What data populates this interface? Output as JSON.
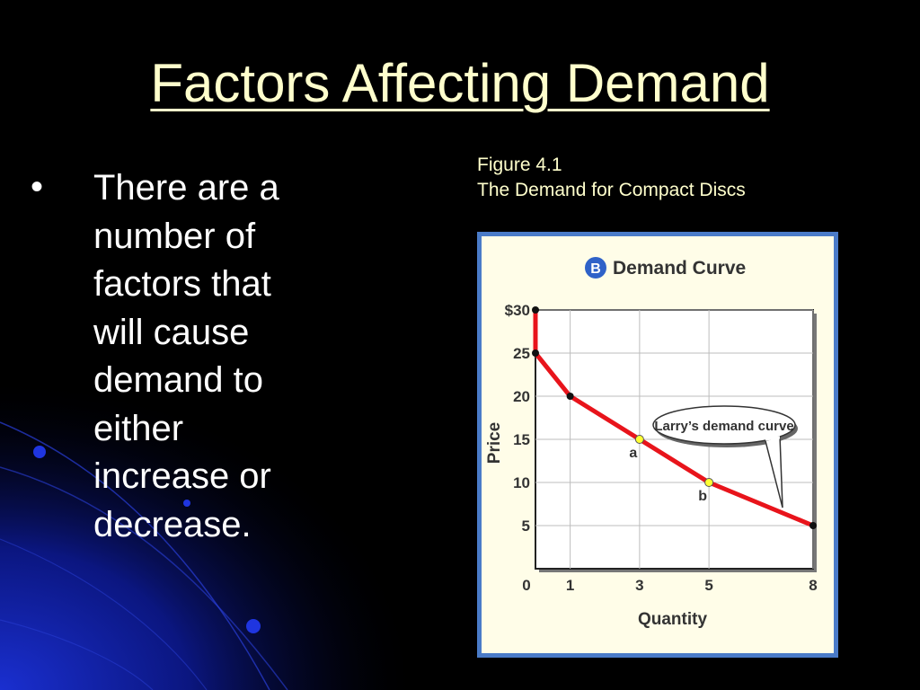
{
  "slide": {
    "title": "Factors Affecting Demand",
    "bullet_marker": "•",
    "bullet_text": "There are a number of factors that will cause demand to either increase or decrease."
  },
  "figure": {
    "caption_line1": "Figure 4.1",
    "caption_line2": "The Demand for Compact Discs",
    "badge_letter": "B",
    "chart_title": "Demand Curve",
    "callout_text": "Larry’s demand curve"
  },
  "colors": {
    "background": "#000000",
    "title_text": "#ffffcc",
    "frame_blue": "#4a7bc8",
    "chart_bg": "#fffde8",
    "curve_red": "#e8141b",
    "badge_blue": "#2f62c8",
    "highlight_point": "#ffff33"
  },
  "chart_data": {
    "type": "line",
    "title": "Demand Curve",
    "xlabel": "Quantity",
    "ylabel": "Price",
    "xlim": [
      0,
      8
    ],
    "ylim": [
      0,
      30
    ],
    "x_ticks": [
      0,
      1,
      3,
      5,
      8
    ],
    "x_tick_labels": [
      "0",
      "1",
      "3",
      "5",
      "8"
    ],
    "y_ticks": [
      5,
      10,
      15,
      20,
      25,
      30
    ],
    "y_tick_labels": [
      "5",
      "10",
      "15",
      "20",
      "25",
      "$30"
    ],
    "grid": true,
    "series": [
      {
        "name": "Larry’s demand curve",
        "points": [
          {
            "x": 0,
            "y": 30,
            "label": ""
          },
          {
            "x": 0,
            "y": 25,
            "label": ""
          },
          {
            "x": 1,
            "y": 20,
            "label": ""
          },
          {
            "x": 3,
            "y": 15,
            "label": "a",
            "highlight": true
          },
          {
            "x": 5,
            "y": 10,
            "label": "b",
            "highlight": true
          },
          {
            "x": 8,
            "y": 5,
            "label": ""
          }
        ]
      }
    ]
  }
}
